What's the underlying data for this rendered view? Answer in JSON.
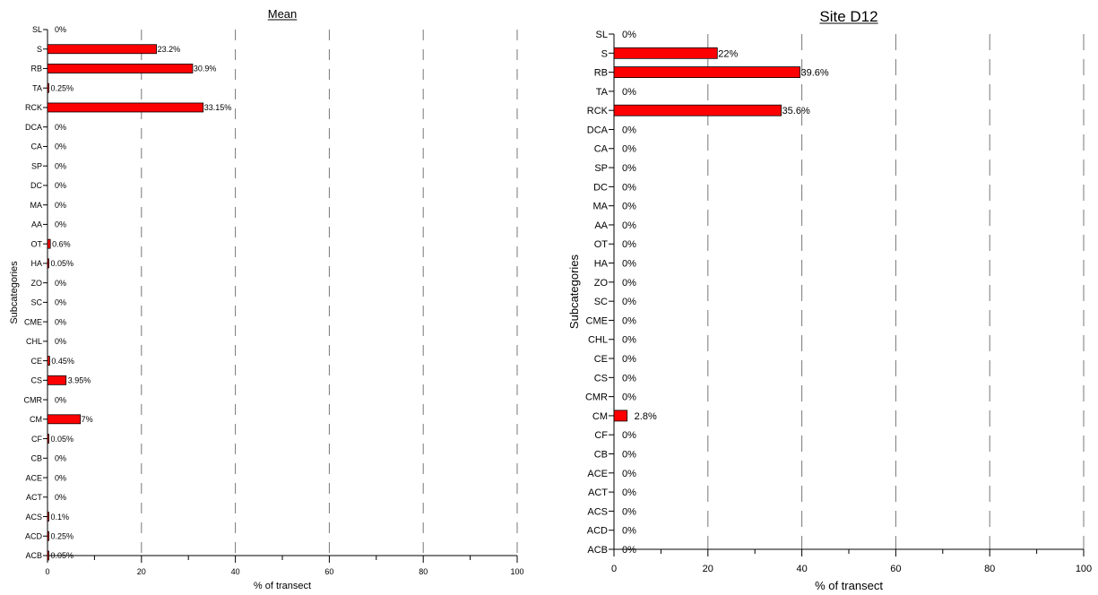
{
  "chart_data": [
    {
      "type": "bar",
      "orientation": "horizontal",
      "title": "Mean",
      "xlabel": "% of transect",
      "ylabel": "Subcategories",
      "xlim": [
        0,
        100
      ],
      "xticks": [
        "0",
        "20",
        "40",
        "60",
        "80",
        "100"
      ],
      "grid": "vertical dashed",
      "bar_color": "#ff0000",
      "categories": [
        "SL",
        "S",
        "RB",
        "TA",
        "RCK",
        "DCA",
        "CA",
        "SP",
        "DC",
        "MA",
        "AA",
        "OT",
        "HA",
        "ZO",
        "SC",
        "CME",
        "CHL",
        "CE",
        "CS",
        "CMR",
        "CM",
        "CF",
        "CB",
        "ACE",
        "ACT",
        "ACS",
        "ACD",
        "ACB"
      ],
      "values": [
        0,
        23.2,
        30.9,
        0.25,
        33.15,
        0,
        0,
        0,
        0,
        0,
        0,
        0.6,
        0.05,
        0,
        0,
        0,
        0,
        0.45,
        3.95,
        0,
        7,
        0.05,
        0,
        0,
        0,
        0.1,
        0.25,
        0.05
      ],
      "data_labels": [
        "0%",
        "23.2%",
        "30.9%",
        "0.25%",
        "33.15%",
        "0%",
        "0%",
        "0%",
        "0%",
        "0%",
        "0%",
        "0.6%",
        "0.05%",
        "0%",
        "0%",
        "0%",
        "0%",
        "0.45%",
        "3.95%",
        "0%",
        "7%",
        "0.05%",
        "0%",
        "0%",
        "0%",
        "0.1%",
        "0.25%",
        "0.05%"
      ]
    },
    {
      "type": "bar",
      "orientation": "horizontal",
      "title": "Site D12",
      "xlabel": "% of transect",
      "ylabel": "Subcategories",
      "xlim": [
        0,
        100
      ],
      "xticks": [
        "0",
        "20",
        "40",
        "60",
        "80",
        "100"
      ],
      "grid": "vertical dashed",
      "bar_color": "#ff0000",
      "categories": [
        "SL",
        "S",
        "RB",
        "TA",
        "RCK",
        "DCA",
        "CA",
        "SP",
        "DC",
        "MA",
        "AA",
        "OT",
        "HA",
        "ZO",
        "SC",
        "CME",
        "CHL",
        "CE",
        "CS",
        "CMR",
        "CM",
        "CF",
        "CB",
        "ACE",
        "ACT",
        "ACS",
        "ACD",
        "ACB"
      ],
      "values": [
        0,
        22,
        39.6,
        0,
        35.6,
        0,
        0,
        0,
        0,
        0,
        0,
        0,
        0,
        0,
        0,
        0,
        0,
        0,
        0,
        0,
        2.8,
        0,
        0,
        0,
        0,
        0,
        0,
        0
      ],
      "data_labels": [
        "0%",
        "22%",
        "39.6%",
        "0%",
        "35.6%",
        "0%",
        "0%",
        "0%",
        "0%",
        "0%",
        "0%",
        "0%",
        "0%",
        "0%",
        "0%",
        "0%",
        "0%",
        "0%",
        "0%",
        "0%",
        "2.8%",
        "0%",
        "0%",
        "0%",
        "0%",
        "0%",
        "0%",
        "0%"
      ]
    }
  ]
}
